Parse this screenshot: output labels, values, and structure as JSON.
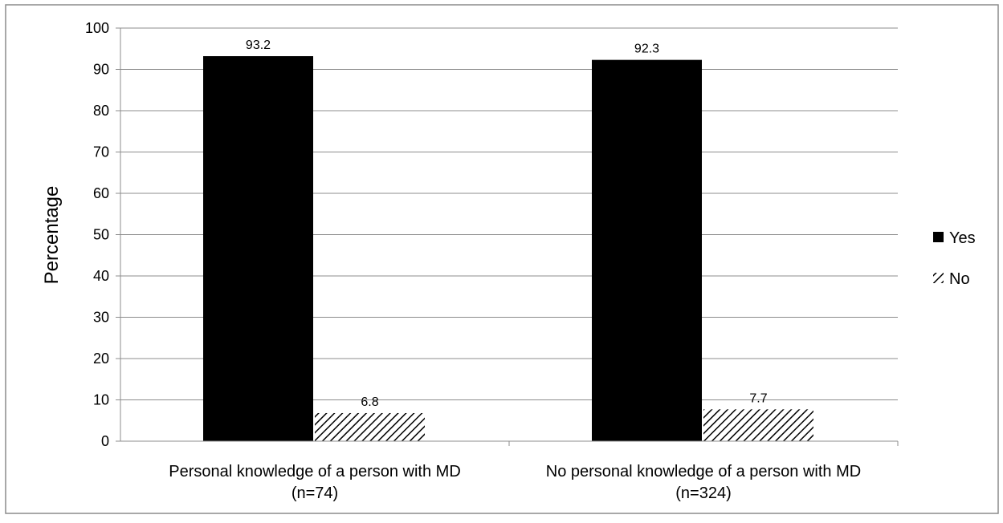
{
  "chart_data": {
    "type": "bar",
    "categories": [
      [
        "Personal knowledge of a person with MD",
        "(n=74)"
      ],
      [
        "No personal knowledge of a person with MD",
        "(n=324)"
      ]
    ],
    "series": [
      {
        "name": "Yes",
        "values": [
          93.2,
          92.3
        ],
        "fill": "solid",
        "color": "#000000"
      },
      {
        "name": "No",
        "values": [
          6.8,
          7.7
        ],
        "fill": "diagonal-hatch",
        "color": "#000000"
      }
    ],
    "data_labels": [
      [
        "93.2",
        "92.3"
      ],
      [
        "6.8",
        "7.7"
      ]
    ],
    "ylabel": "Percentage",
    "ylim": [
      0,
      100
    ],
    "yticks": [
      0,
      10,
      20,
      30,
      40,
      50,
      60,
      70,
      80,
      90,
      100
    ],
    "grid": true,
    "legend": "right"
  }
}
